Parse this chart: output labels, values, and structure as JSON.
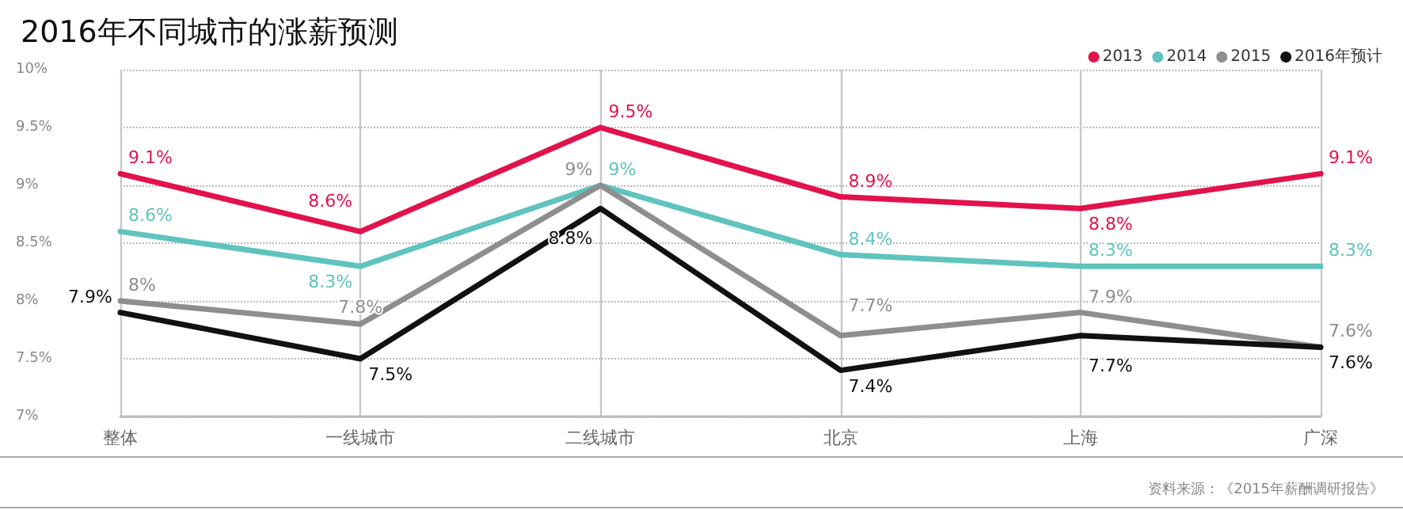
{
  "chart_data": {
    "type": "line",
    "title": "2016年不同城市的涨薪预测",
    "categories": [
      "整体",
      "一线城市",
      "二线城市",
      "北京",
      "上海",
      "广深"
    ],
    "series": [
      {
        "name": "2013",
        "color": "#e2124d",
        "values": [
          9.1,
          8.6,
          9.5,
          8.9,
          8.8,
          9.1
        ],
        "value_labels": [
          "9.1%",
          "8.6%",
          "9.5%",
          "8.9%",
          "8.8%",
          "9.1%"
        ]
      },
      {
        "name": "2014",
        "color": "#5fc3be",
        "values": [
          8.6,
          8.3,
          9,
          8.4,
          8.3,
          8.3
        ],
        "value_labels": [
          "8.6%",
          "8.3%",
          "9%",
          "8.4%",
          "8.3%",
          "8.3%"
        ]
      },
      {
        "name": "2015",
        "color": "#8e8e8e",
        "values": [
          8,
          7.8,
          9,
          7.7,
          7.9,
          7.6
        ],
        "value_labels": [
          "8%",
          "7.8%",
          "9%",
          "7.7%",
          "7.9%",
          "7.6%"
        ]
      },
      {
        "name": "2016年预计",
        "color": "#111111",
        "values": [
          7.9,
          7.5,
          8.8,
          7.4,
          7.7,
          7.6
        ],
        "value_labels": [
          "7.9%",
          "7.5%",
          "8.8%",
          "7.4%",
          "7.7%",
          "7.6%"
        ]
      }
    ],
    "ylim": [
      7,
      10
    ],
    "yticks": [
      {
        "value": 7,
        "label": "7%"
      },
      {
        "value": 7.5,
        "label": "7.5%"
      },
      {
        "value": 8,
        "label": "8%"
      },
      {
        "value": 8.5,
        "label": "8.5%"
      },
      {
        "value": 9,
        "label": "9%"
      },
      {
        "value": 9.5,
        "label": "9.5%"
      },
      {
        "value": 10,
        "label": "10%"
      }
    ],
    "grid": true,
    "legend": "top right",
    "marker": "none",
    "line_style": "solid",
    "annotations": [
      "资料来源：《2015年薪酬调研报告》"
    ]
  }
}
